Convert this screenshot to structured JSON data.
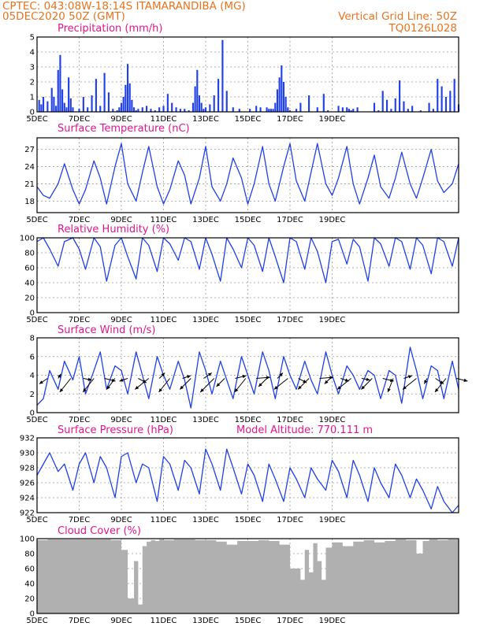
{
  "header": {
    "line1_left": "CPTEC:   043:08W-18:14S   ITAMARANDIBA (MG)",
    "line2_left": "05DEC2020 50Z (GMT)",
    "line2_right": "Vertical Grid Line: 50Z",
    "line3_right": "TQ0126L028"
  },
  "colors": {
    "series": "#2040e8",
    "cloud": "#b0b0b0",
    "title": "#e0168c",
    "header": "#e8731e"
  },
  "x_ticks": [
    "5DEC",
    "7DEC",
    "9DEC",
    "11DEC",
    "13DEC",
    "15DEC",
    "17DEC",
    "19DEC"
  ],
  "chart_data": [
    {
      "type": "bar",
      "title": "Precipitation (mm/h)",
      "x_unit": "days since 05DEC2020",
      "ylim": [
        0,
        5
      ],
      "yticks": [
        0,
        1,
        2,
        3,
        4,
        5
      ],
      "grid": true,
      "x": [
        0.1,
        0.2,
        0.3,
        0.5,
        0.7,
        0.8,
        0.9,
        1.0,
        1.1,
        1.2,
        1.3,
        1.4,
        1.5,
        1.6,
        1.7,
        2.0,
        2.2,
        2.4,
        2.6,
        2.8,
        3.0,
        3.2,
        3.4,
        3.6,
        3.8,
        3.9,
        4.0,
        4.1,
        4.2,
        4.3,
        4.4,
        4.5,
        4.6,
        4.7,
        4.8,
        5.0,
        5.2,
        5.4,
        5.6,
        5.8,
        6.0,
        6.2,
        6.4,
        6.6,
        6.8,
        7.0,
        7.2,
        7.4,
        7.5,
        7.6,
        7.7,
        7.8,
        7.9,
        8.0,
        8.2,
        8.4,
        8.6,
        8.8,
        9.0,
        9.3,
        9.6,
        10.1,
        10.4,
        10.6,
        10.9,
        11.0,
        11.1,
        11.2,
        11.3,
        11.4,
        11.5,
        11.6,
        11.7,
        11.8,
        11.9,
        12.0,
        12.3,
        12.5,
        12.9,
        13.3,
        13.6,
        13.8,
        14.3,
        14.5,
        14.7,
        14.8,
        14.9,
        15.0,
        15.2,
        16.0,
        16.2,
        16.4,
        16.6,
        16.8,
        17.0,
        17.2,
        17.4,
        17.6,
        17.8,
        18.2,
        18.6,
        18.8,
        19.0,
        19.2,
        19.4,
        19.6,
        19.8,
        20.0
      ],
      "values": [
        0.8,
        0.5,
        1.0,
        0.7,
        1.6,
        1.0,
        0.4,
        2.8,
        3.8,
        1.5,
        0.6,
        0.3,
        2.3,
        0.9,
        0.3,
        0.2,
        1.0,
        0.3,
        1.1,
        2.2,
        0.4,
        2.6,
        1.3,
        0.2,
        0.1,
        0.3,
        0.6,
        1.0,
        1.8,
        3.2,
        1.9,
        0.8,
        0.3,
        0.1,
        0.2,
        0.3,
        0.4,
        0.2,
        0.1,
        0.3,
        0.4,
        1.2,
        0.6,
        0.3,
        0.2,
        0.2,
        0.1,
        0.6,
        1.7,
        2.8,
        1.1,
        0.6,
        0.2,
        0.3,
        0.5,
        1.1,
        2.2,
        4.8,
        1.4,
        0.3,
        0.2,
        0.2,
        0.4,
        0.3,
        0.3,
        0.2,
        0.2,
        0.2,
        0.6,
        1.5,
        2.3,
        3.1,
        2.0,
        1.0,
        0.3,
        0.1,
        0.2,
        0.6,
        1.1,
        0.3,
        1.2,
        0.1,
        0.4,
        0.3,
        0.3,
        0.2,
        0.1,
        0.2,
        0.3,
        0.6,
        0.1,
        1.4,
        0.8,
        0.2,
        0.9,
        2.1,
        0.7,
        0.2,
        0.4,
        0.1,
        0.6,
        0.2,
        2.2,
        1.7,
        1.0,
        1.4,
        2.2,
        0.5
      ]
    },
    {
      "type": "line",
      "title": "Surface Temperature (nC)",
      "x_unit": "days since 05DEC2020",
      "ylim": [
        16,
        29
      ],
      "yticks": [
        18,
        21,
        24,
        27
      ],
      "grid": true,
      "x": [
        0.0,
        0.3,
        0.6,
        1.0,
        1.3,
        1.7,
        2.0,
        2.3,
        2.7,
        3.0,
        3.3,
        3.7,
        4.0,
        4.3,
        4.7,
        5.0,
        5.3,
        5.7,
        6.0,
        6.3,
        6.7,
        7.0,
        7.3,
        7.7,
        8.0,
        8.3,
        8.7,
        9.0,
        9.3,
        9.7,
        10.0,
        10.3,
        10.7,
        11.0,
        11.3,
        11.7,
        12.0,
        12.3,
        12.7,
        13.0,
        13.3,
        13.7,
        14.0,
        14.3,
        14.7,
        15.0,
        15.3,
        15.7,
        16.0,
        16.3,
        16.7,
        17.0,
        17.3,
        17.7,
        18.0,
        18.3,
        18.7,
        19.0,
        19.3,
        19.7,
        20.0
      ],
      "values": [
        20.5,
        19.0,
        18.5,
        21.0,
        24.5,
        20.0,
        17.5,
        20.0,
        25.0,
        22.0,
        17.5,
        24.0,
        28.0,
        21.0,
        18.0,
        23.0,
        27.5,
        20.5,
        17.5,
        20.0,
        25.0,
        22.5,
        17.5,
        22.0,
        27.5,
        20.5,
        18.0,
        21.0,
        25.5,
        22.0,
        17.5,
        21.0,
        27.5,
        21.0,
        18.0,
        24.0,
        28.0,
        21.5,
        18.0,
        23.0,
        28.0,
        21.0,
        19.0,
        22.0,
        27.5,
        21.0,
        17.5,
        22.0,
        26.0,
        20.5,
        18.5,
        22.0,
        26.5,
        21.0,
        18.5,
        22.0,
        27.0,
        21.5,
        19.5,
        21.0,
        24.5
      ]
    },
    {
      "type": "line",
      "title": "Relative Humidity (%)",
      "x_unit": "days since 05DEC2020",
      "ylim": [
        0,
        100
      ],
      "yticks": [
        0,
        20,
        40,
        60,
        80,
        100
      ],
      "grid": true,
      "x": [
        0.0,
        0.3,
        0.6,
        1.0,
        1.3,
        1.7,
        2.0,
        2.3,
        2.7,
        3.0,
        3.3,
        3.7,
        4.0,
        4.3,
        4.7,
        5.0,
        5.3,
        5.7,
        6.0,
        6.3,
        6.7,
        7.0,
        7.3,
        7.7,
        8.0,
        8.3,
        8.7,
        9.0,
        9.3,
        9.7,
        10.0,
        10.3,
        10.7,
        11.0,
        11.3,
        11.7,
        12.0,
        12.3,
        12.7,
        13.0,
        13.3,
        13.7,
        14.0,
        14.3,
        14.7,
        15.0,
        15.3,
        15.7,
        16.0,
        16.3,
        16.7,
        17.0,
        17.3,
        17.7,
        18.0,
        18.3,
        18.7,
        19.0,
        19.3,
        19.7,
        20.0
      ],
      "values": [
        95,
        100,
        85,
        62,
        95,
        100,
        85,
        58,
        100,
        88,
        42,
        90,
        100,
        75,
        45,
        100,
        90,
        55,
        100,
        92,
        70,
        100,
        95,
        58,
        100,
        78,
        42,
        100,
        85,
        60,
        100,
        90,
        55,
        100,
        75,
        40,
        100,
        95,
        58,
        100,
        82,
        40,
        95,
        98,
        65,
        98,
        88,
        42,
        100,
        92,
        62,
        100,
        95,
        58,
        100,
        90,
        52,
        100,
        95,
        62,
        100
      ]
    },
    {
      "type": "line",
      "title": "Surface Wind (m/s)",
      "x_unit": "days since 05DEC2020",
      "ylim": [
        0,
        8
      ],
      "yticks": [
        0,
        2,
        4,
        6,
        8
      ],
      "grid": true,
      "x": [
        0.0,
        0.3,
        0.6,
        1.0,
        1.3,
        1.7,
        2.0,
        2.3,
        2.7,
        3.0,
        3.3,
        3.7,
        4.0,
        4.3,
        4.7,
        5.0,
        5.3,
        5.7,
        6.0,
        6.3,
        6.7,
        7.0,
        7.3,
        7.7,
        8.0,
        8.3,
        8.7,
        9.0,
        9.3,
        9.7,
        10.0,
        10.3,
        10.7,
        11.0,
        11.3,
        11.7,
        12.0,
        12.3,
        12.7,
        13.0,
        13.3,
        13.7,
        14.0,
        14.3,
        14.7,
        15.0,
        15.3,
        15.7,
        16.0,
        16.3,
        16.7,
        17.0,
        17.3,
        17.7,
        18.0,
        18.3,
        18.7,
        19.0,
        19.3,
        19.7,
        20.0
      ],
      "values": [
        0.8,
        1.5,
        4.5,
        2.5,
        5.5,
        3.5,
        6.0,
        2.0,
        4.5,
        6.5,
        2.5,
        5.0,
        4.5,
        2.0,
        6.5,
        4.0,
        1.5,
        6.0,
        4.0,
        2.5,
        5.5,
        3.5,
        0.5,
        6.5,
        4.5,
        2.0,
        5.5,
        3.5,
        1.5,
        6.0,
        4.0,
        2.0,
        6.5,
        4.5,
        1.5,
        6.0,
        4.0,
        2.5,
        5.5,
        3.5,
        2.0,
        6.5,
        4.0,
        2.0,
        5.0,
        4.0,
        2.5,
        4.5,
        4.0,
        1.5,
        4.5,
        4.0,
        1.0,
        7.0,
        4.5,
        1.5,
        5.0,
        4.5,
        1.5,
        5.5,
        2.5
      ],
      "arrows": {
        "x": [
          0.5,
          1.0,
          1.6,
          2.2,
          2.7,
          3.2,
          3.7,
          4.3,
          4.8,
          5.3,
          5.8,
          6.3,
          6.9,
          7.3,
          7.9,
          8.4,
          8.9,
          9.4,
          9.9,
          10.4,
          10.9,
          11.4,
          11.9,
          12.4,
          12.9,
          13.4,
          13.9,
          14.4,
          14.9,
          15.4,
          15.9,
          16.4,
          16.9,
          17.4,
          18.0,
          18.5,
          18.9,
          19.4,
          19.9
        ],
        "u": [
          -1.5,
          0.5,
          -2.0,
          1.5,
          -2.0,
          2.0,
          -1.5,
          -1.5,
          1.5,
          -2.5,
          1.0,
          -2.0,
          1.5,
          -2.0,
          1.5,
          -2.5,
          -1.5,
          2.0,
          -2.0,
          2.5,
          -1.5,
          1.0,
          -2.5,
          1.5,
          -2.0,
          2.5,
          -1.0,
          1.5,
          -2.5,
          1.5,
          -2.0,
          2.0,
          -1.0,
          1.5,
          -2.5,
          -0.5,
          1.5,
          -2.0,
          2.0
        ],
        "v": [
          -1.0,
          0.8,
          -2.5,
          -0.3,
          -2.5,
          -0.5,
          -2.0,
          -0.5,
          -0.8,
          -2.0,
          1.0,
          -2.5,
          0.5,
          -2.0,
          1.0,
          -2.5,
          -1.5,
          0.5,
          -2.5,
          0.2,
          -1.5,
          1.0,
          -2.0,
          -0.8,
          -2.0,
          0.2,
          -1.0,
          -0.5,
          -2.0,
          -0.3,
          -2.0,
          -0.5,
          -2.5,
          0.5,
          -2.0,
          -1.0,
          -1.0,
          -2.5,
          -0.5
        ]
      }
    },
    {
      "type": "line",
      "title": "Surface Pressure (hPa)",
      "annotation": "Model Altitude: 770.111  m",
      "x_unit": "days since 05DEC2020",
      "ylim": [
        922,
        932
      ],
      "yticks": [
        922,
        924,
        926,
        928,
        930,
        932
      ],
      "grid": true,
      "x": [
        0.0,
        0.3,
        0.6,
        1.0,
        1.3,
        1.7,
        2.0,
        2.3,
        2.7,
        3.0,
        3.3,
        3.7,
        4.0,
        4.3,
        4.7,
        5.0,
        5.3,
        5.7,
        6.0,
        6.3,
        6.7,
        7.0,
        7.3,
        7.7,
        8.0,
        8.3,
        8.7,
        9.0,
        9.3,
        9.7,
        10.0,
        10.3,
        10.7,
        11.0,
        11.3,
        11.7,
        12.0,
        12.3,
        12.7,
        13.0,
        13.3,
        13.7,
        14.0,
        14.3,
        14.7,
        15.0,
        15.3,
        15.7,
        16.0,
        16.3,
        16.7,
        17.0,
        17.3,
        17.7,
        18.0,
        18.3,
        18.7,
        19.0,
        19.3,
        19.7,
        20.0
      ],
      "values": [
        927.0,
        928.5,
        930.0,
        927.5,
        928.5,
        925.0,
        928.5,
        930.0,
        926.0,
        929.5,
        928.0,
        924.0,
        929.5,
        930.0,
        926.0,
        928.5,
        928.0,
        923.5,
        929.5,
        928.5,
        925.0,
        929.0,
        928.0,
        924.5,
        930.5,
        928.5,
        925.0,
        930.5,
        928.0,
        924.5,
        928.5,
        927.0,
        923.5,
        928.5,
        926.5,
        923.5,
        928.0,
        926.5,
        924.0,
        928.0,
        926.5,
        925.0,
        929.0,
        927.5,
        924.0,
        929.0,
        927.0,
        923.5,
        928.0,
        926.0,
        924.0,
        928.5,
        927.0,
        924.0,
        926.5,
        925.0,
        922.5,
        925.5,
        923.5,
        922.0,
        923.0
      ]
    },
    {
      "type": "bar",
      "title": "Cloud Cover (%)",
      "x_unit": "days since 05DEC2020",
      "ylim": [
        0,
        100
      ],
      "yticks": [
        0,
        20,
        40,
        60,
        80,
        100
      ],
      "grid": true,
      "x": [
        0.5,
        1.5,
        2.5,
        3.5,
        4.0,
        4.3,
        4.6,
        4.8,
        5.0,
        5.2,
        5.4,
        5.6,
        5.8,
        6.0,
        6.5,
        7.5,
        8.5,
        9.0,
        9.5,
        10.5,
        11.0,
        11.5,
        12.0,
        12.5,
        12.7,
        12.9,
        13.1,
        13.3,
        13.5,
        13.7,
        14.0,
        14.5,
        15.0,
        15.5,
        16.0,
        16.5,
        17.0,
        17.5,
        18.0,
        18.3,
        18.6,
        19.0,
        19.5,
        20.0
      ],
      "values": [
        98,
        99,
        99,
        99,
        98,
        85,
        20,
        70,
        12,
        90,
        96,
        98,
        97,
        99,
        98,
        99,
        98,
        96,
        92,
        97,
        98,
        97,
        92,
        60,
        45,
        85,
        55,
        94,
        70,
        45,
        88,
        95,
        90,
        96,
        98,
        95,
        97,
        99,
        98,
        80,
        97,
        99,
        98,
        99
      ]
    }
  ]
}
